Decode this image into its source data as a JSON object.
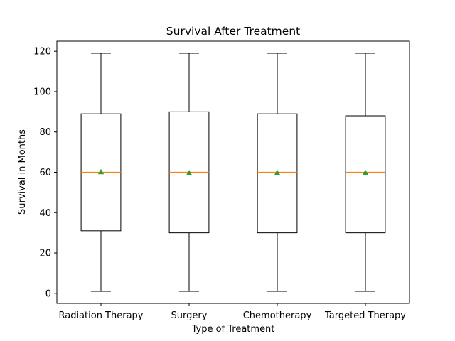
{
  "chart_data": {
    "type": "box",
    "title": "Survival After Treatment",
    "xlabel": "Type of Treatment",
    "ylabel": "Survival in Months",
    "ylim": [
      -5,
      125
    ],
    "yticks": [
      0,
      20,
      40,
      60,
      80,
      100,
      120
    ],
    "grid": false,
    "categories": [
      "Radiation Therapy",
      "Surgery",
      "Chemotherapy",
      "Targeted Therapy"
    ],
    "boxes": [
      {
        "min": 1,
        "q1": 31,
        "median": 60,
        "mean": 60.2,
        "q3": 89,
        "max": 119
      },
      {
        "min": 1,
        "q1": 30,
        "median": 60,
        "mean": 59.7,
        "q3": 90,
        "max": 119
      },
      {
        "min": 1,
        "q1": 30,
        "median": 60,
        "mean": 59.8,
        "q3": 89,
        "max": 119
      },
      {
        "min": 1,
        "q1": 30,
        "median": 60,
        "mean": 59.8,
        "q3": 88,
        "max": 119
      }
    ],
    "colors": {
      "box": "#000000",
      "median": "#ff7f0e",
      "mean": "#2ca02c"
    }
  }
}
